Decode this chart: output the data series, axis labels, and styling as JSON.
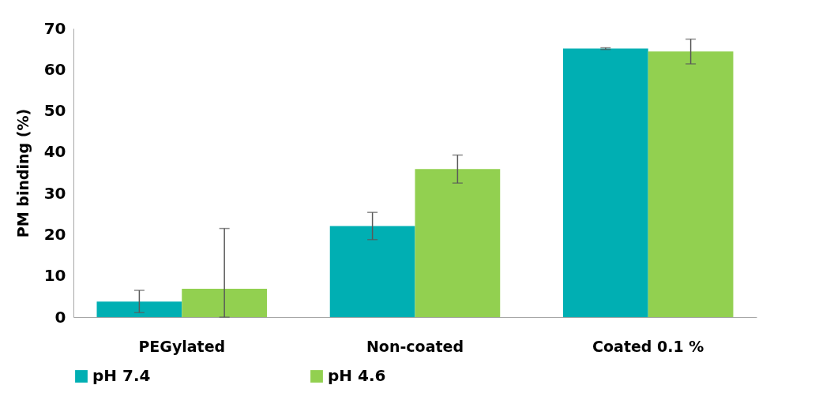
{
  "chart_data": {
    "type": "bar",
    "ylabel": "PM binding (%)",
    "categories": [
      "PEGylated",
      "Non-coated",
      "Coated 0.1 %"
    ],
    "series": [
      {
        "name": "pH 7.4",
        "color": "#00afb3",
        "values": [
          3.8,
          22.1,
          65.1
        ],
        "errors": [
          2.7,
          3.3,
          0.2
        ]
      },
      {
        "name": "pH 4.6",
        "color": "#92d050",
        "values": [
          6.9,
          35.9,
          64.4
        ],
        "errors": [
          [
            0,
            21.5
          ],
          3.4,
          3.0
        ]
      }
    ],
    "ylim": [
      0,
      70
    ],
    "yticks": [
      0,
      10,
      20,
      30,
      40,
      50,
      60,
      70
    ],
    "grid": false,
    "legend": "bottom"
  }
}
